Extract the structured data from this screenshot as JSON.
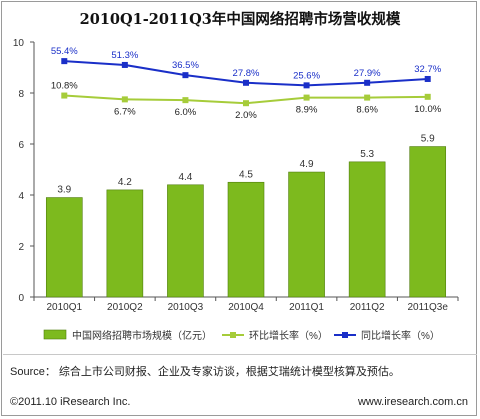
{
  "chart_data": {
    "type": "bar",
    "title": "2010Q1-2011Q3年中国网络招聘市场营收规模",
    "categories": [
      "2010Q1",
      "2010Q2",
      "2010Q3",
      "2010Q4",
      "2011Q1",
      "2011Q2",
      "2011Q3e"
    ],
    "ylim": [
      0,
      10
    ],
    "yticks": [
      0,
      2,
      4,
      6,
      8,
      10
    ],
    "bar_series": {
      "name": "中国网络招聘市场规模（亿元）",
      "values": [
        3.9,
        4.2,
        4.4,
        4.5,
        4.9,
        5.3,
        5.9
      ],
      "labels": [
        "3.9",
        "4.2",
        "4.4",
        "4.5",
        "4.9",
        "5.3",
        "5.9"
      ],
      "color": "#7dba1e"
    },
    "line_series": [
      {
        "name": "环比增长率（%）",
        "labels": [
          "10.8%",
          "6.7%",
          "6.0%",
          "2.0%",
          "8.9%",
          "8.6%",
          "10.0%"
        ],
        "plot_values": [
          7.9,
          7.75,
          7.72,
          7.6,
          7.82,
          7.82,
          7.85
        ],
        "color": "#a6cc3a",
        "marker": "square"
      },
      {
        "name": "同比增长率（%）",
        "labels": [
          "55.4%",
          "51.3%",
          "36.5%",
          "27.8%",
          "25.6%",
          "27.9%",
          "32.7%"
        ],
        "plot_values": [
          9.25,
          9.1,
          8.7,
          8.4,
          8.3,
          8.4,
          8.55
        ],
        "color": "#1a2fc8",
        "marker": "square"
      }
    ],
    "legend_position": "bottom"
  },
  "footer": {
    "source": "Source：  综合上市公司财报、企业及专家访谈，根据艾瑞统计模型核算及预估。",
    "copyright": "©2011.10 iResearch Inc.",
    "website": "www.iresearch.com.cn"
  }
}
